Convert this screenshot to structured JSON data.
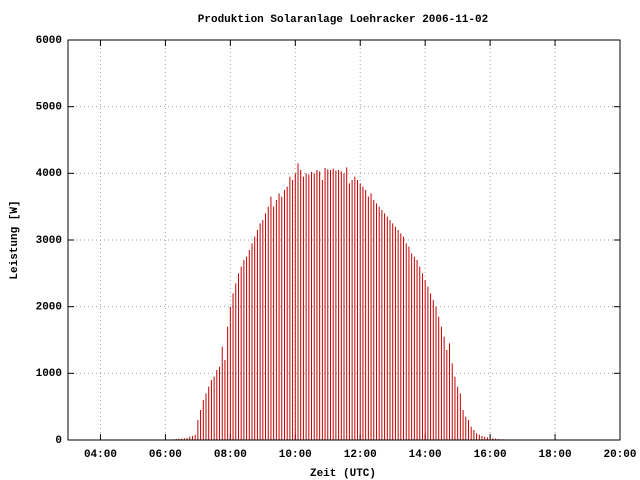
{
  "chart_data": {
    "type": "impulse",
    "title": "Produktion Solaranlage Loehracker 2006-11-02",
    "xlabel": "Zeit (UTC)",
    "ylabel": "Leistung [W]",
    "color": "#c00000",
    "grid": true,
    "xlim": [
      180,
      1200
    ],
    "xticks": [
      {
        "value": 240,
        "label": "04:00"
      },
      {
        "value": 360,
        "label": "06:00"
      },
      {
        "value": 480,
        "label": "08:00"
      },
      {
        "value": 600,
        "label": "10:00"
      },
      {
        "value": 720,
        "label": "12:00"
      },
      {
        "value": 840,
        "label": "14:00"
      },
      {
        "value": 960,
        "label": "16:00"
      },
      {
        "value": 1080,
        "label": "18:00"
      },
      {
        "value": 1200,
        "label": "20:00"
      }
    ],
    "ylim": [
      0,
      6000
    ],
    "yticks": [
      0,
      1000,
      2000,
      3000,
      4000,
      5000,
      6000
    ],
    "x": [
      375,
      380,
      385,
      390,
      395,
      400,
      405,
      410,
      415,
      420,
      425,
      430,
      435,
      440,
      445,
      450,
      455,
      460,
      465,
      470,
      475,
      480,
      485,
      490,
      495,
      500,
      505,
      510,
      515,
      520,
      525,
      530,
      535,
      540,
      545,
      550,
      555,
      560,
      565,
      570,
      575,
      580,
      585,
      590,
      595,
      600,
      605,
      610,
      615,
      620,
      625,
      630,
      635,
      640,
      645,
      650,
      655,
      660,
      665,
      670,
      675,
      680,
      685,
      690,
      695,
      700,
      705,
      710,
      715,
      720,
      725,
      730,
      735,
      740,
      745,
      750,
      755,
      760,
      765,
      770,
      775,
      780,
      785,
      790,
      795,
      800,
      805,
      810,
      815,
      820,
      825,
      830,
      835,
      840,
      845,
      850,
      855,
      860,
      865,
      870,
      875,
      880,
      885,
      890,
      895,
      900,
      905,
      910,
      915,
      920,
      925,
      930,
      935,
      940,
      945,
      950,
      955,
      960,
      965,
      970,
      975,
      980,
      985,
      990
    ],
    "values": [
      10,
      15,
      20,
      20,
      25,
      30,
      50,
      60,
      80,
      300,
      450,
      600,
      700,
      800,
      900,
      950,
      1050,
      1100,
      1400,
      1200,
      1700,
      2000,
      2200,
      2350,
      2500,
      2600,
      2700,
      2750,
      2850,
      2950,
      3050,
      3150,
      3250,
      3300,
      3400,
      3500,
      3650,
      3500,
      3600,
      3700,
      3650,
      3750,
      3800,
      3950,
      3900,
      4000,
      4150,
      4050,
      3950,
      4000,
      3980,
      4020,
      4000,
      4050,
      4030,
      3900,
      4080,
      4060,
      4050,
      4070,
      4040,
      4050,
      4030,
      4000,
      4090,
      3850,
      3900,
      3950,
      3900,
      3850,
      3800,
      3750,
      3650,
      3700,
      3600,
      3550,
      3500,
      3450,
      3400,
      3350,
      3300,
      3250,
      3200,
      3150,
      3100,
      3050,
      2950,
      2900,
      2800,
      2750,
      2700,
      2600,
      2500,
      2400,
      2300,
      2200,
      2100,
      2000,
      1850,
      1700,
      1550,
      1350,
      1450,
      1150,
      950,
      800,
      700,
      450,
      350,
      300,
      200,
      150,
      100,
      80,
      60,
      50,
      40,
      30,
      25,
      20,
      15,
      10,
      10,
      5
    ]
  }
}
